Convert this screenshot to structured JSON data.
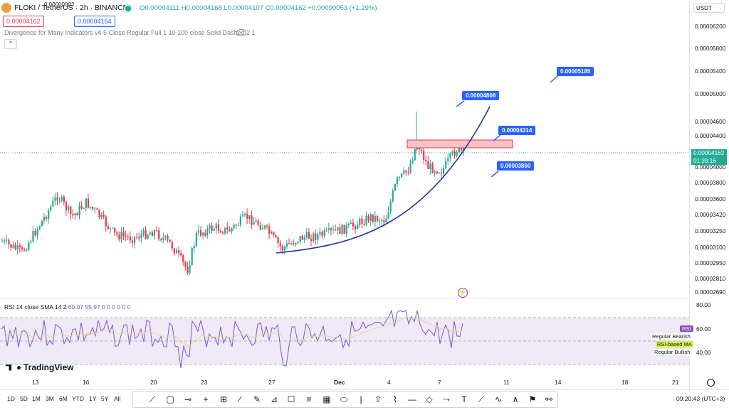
{
  "header": {
    "symbol_title": "FLOKI / TetherUS · 2h · BINANCE",
    "ohlc": "O0.00004111 H0.00004168 L0.00004107 C0.00004162 +0.00000053 (+1.29%)",
    "sell_price": "0.00004162",
    "spread": "0.00000002",
    "buy_price": "0.00004164",
    "indicator_line": "Divergence for Many Indicators v4 5 Close Regular Full 1 10 100 close Solid Dashed 2 1",
    "collapse_icon": "chevron-up-icon"
  },
  "price_scale": {
    "currency": "USDT",
    "ticks": [
      "0.00006200",
      "0.00005800",
      "0.00005400",
      "0.00005000",
      "0.00004600",
      "0.00004400",
      "0.00004000",
      "0.00003800",
      "0.00003600",
      "0.00003420",
      "0.00003250",
      "0.00003100",
      "0.00002950",
      "0.00002810",
      "0.00002690"
    ],
    "current_price": "0.00004162",
    "countdown": "01:39:16"
  },
  "callouts": [
    "0.00005185",
    "0.00004808",
    "0.00004314",
    "0.00003860"
  ],
  "rsi": {
    "header_label": "RSI 14 close SMA 14 2",
    "values": "60.07  55.97  0 0 0 0 0 0",
    "badge": "RSI",
    "badge_value": "60.00",
    "ticks": [
      "80.00",
      "40.00"
    ],
    "legend_bearish": "Regular Bearish",
    "legend_ma": "RSI-based MA",
    "legend_bullish": "Regular Bullish"
  },
  "brand": "TradingView",
  "time_axis": [
    "13",
    "16",
    "20",
    "23",
    "27",
    "Dec",
    "4",
    "7",
    "11",
    "14",
    "18",
    "21"
  ],
  "timeframes": [
    "1D",
    "5D",
    "1M",
    "3M",
    "6M",
    "YTD",
    "1Y",
    "5Y",
    "All"
  ],
  "toolbar_icons": [
    "trend-line-icon",
    "rectangle-icon",
    "horizontal-ray-icon",
    "crosshair-icon",
    "position-icon",
    "ray-icon",
    "pen-icon",
    "ruler-icon",
    "text-icon",
    "fib-icon",
    "grid-icon",
    "ellipse-icon",
    "vertical-line-icon",
    "arrow-icon",
    "path-icon",
    "triangle-icon",
    "text-tool-icon",
    "curve-icon",
    "brush-icon",
    "polyline-icon",
    "flag-icon",
    "pattern-icon"
  ],
  "clock": "09:20:43 (UTC+3)",
  "colors": {
    "up": "#22ab94",
    "down": "#f23645",
    "accent": "#2962ff",
    "rsi": "#7e57c2"
  }
}
